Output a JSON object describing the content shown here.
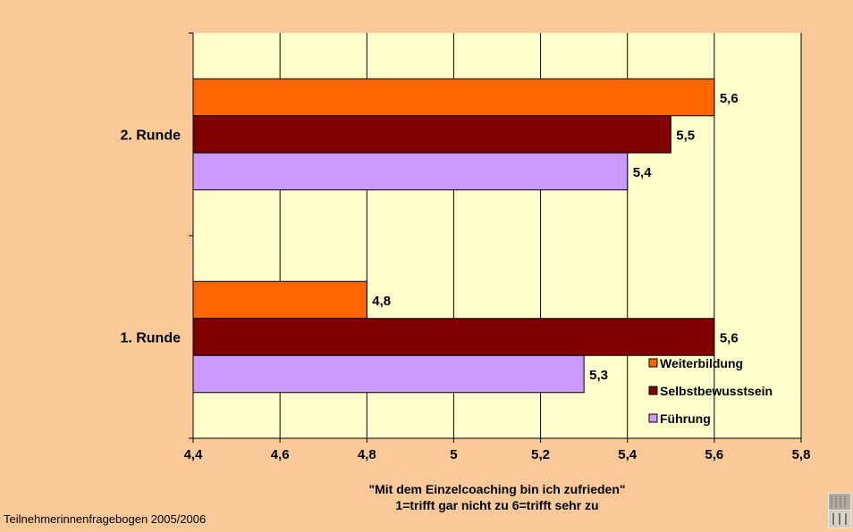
{
  "chart_data": {
    "type": "bar",
    "orientation": "horizontal",
    "categories": [
      "2. Runde",
      "1. Runde"
    ],
    "series": [
      {
        "name": "Weiterbildung",
        "color": "#ff6600",
        "values": [
          5.6,
          4.8
        ],
        "labels": [
          "5,6",
          "4,8"
        ]
      },
      {
        "name": "Selbstbewusstsein",
        "color": "#800000",
        "values": [
          5.5,
          5.6
        ],
        "labels": [
          "5,5",
          "5,6"
        ]
      },
      {
        "name": "Führung",
        "color": "#cc99ff",
        "values": [
          5.4,
          5.3
        ],
        "labels": [
          "5,4",
          "5,3"
        ]
      }
    ],
    "xlim": [
      4.4,
      5.8
    ],
    "xticks": [
      4.4,
      4.6,
      4.8,
      5.0,
      5.2,
      5.4,
      5.6,
      5.8
    ],
    "xtick_labels": [
      "4,4",
      "4,6",
      "4,8",
      "5",
      "5,2",
      "5,4",
      "5,6",
      "5,8"
    ],
    "xlabel_line1": "\"Mit dem Einzelcoaching bin ich zufrieden\"",
    "xlabel_line2": "1=trifft gar nicht zu 6=trifft sehr zu",
    "grid": "vertical",
    "legend_position": "bottom-right",
    "plot_bg": "#ffffcc",
    "page_bg": "#f9c99a"
  },
  "footer": {
    "text": "Teilnehmerinnenfragebogen 2005/2006"
  },
  "logo": {
    "icon": "university-logo-icon"
  }
}
